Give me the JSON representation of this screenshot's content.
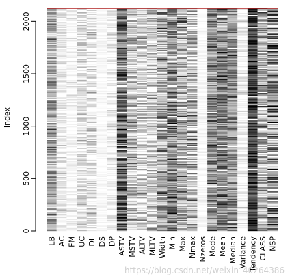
{
  "chart_data": {
    "type": "heatmap",
    "ylabel": "Index",
    "yticks": [
      0,
      500,
      1000,
      1500,
      2000
    ],
    "ylim": [
      0,
      2126
    ],
    "nrows": 2126,
    "columns": [
      "LB",
      "AC",
      "FM",
      "UC",
      "DL",
      "DS",
      "DP",
      "ASTV",
      "MSTV",
      "ALTV",
      "MLTV",
      "Width",
      "Min",
      "Max",
      "Nmax",
      "Nzeros",
      "Mode",
      "Mean",
      "Median",
      "Variance",
      "Tendency",
      "CLASS",
      "NSP"
    ],
    "column_intensity": [
      0.35,
      0.08,
      0.03,
      0.12,
      0.06,
      0.02,
      0.04,
      0.6,
      0.25,
      0.15,
      0.2,
      0.35,
      0.5,
      0.3,
      0.25,
      0.02,
      0.45,
      0.5,
      0.45,
      0.05,
      0.75,
      0.3,
      0.45
    ],
    "column_contrast": [
      0.3,
      0.15,
      0.1,
      0.2,
      0.25,
      0.05,
      0.15,
      0.35,
      0.3,
      0.3,
      0.3,
      0.35,
      0.35,
      0.35,
      0.35,
      0.05,
      0.3,
      0.3,
      0.3,
      0.15,
      0.25,
      0.35,
      0.5
    ],
    "top_border_color": "#b22222",
    "colors": {
      "low": "#ffffff",
      "high": "#000000"
    }
  },
  "watermark": "https://blog.csdn.net/weixin_40264386"
}
